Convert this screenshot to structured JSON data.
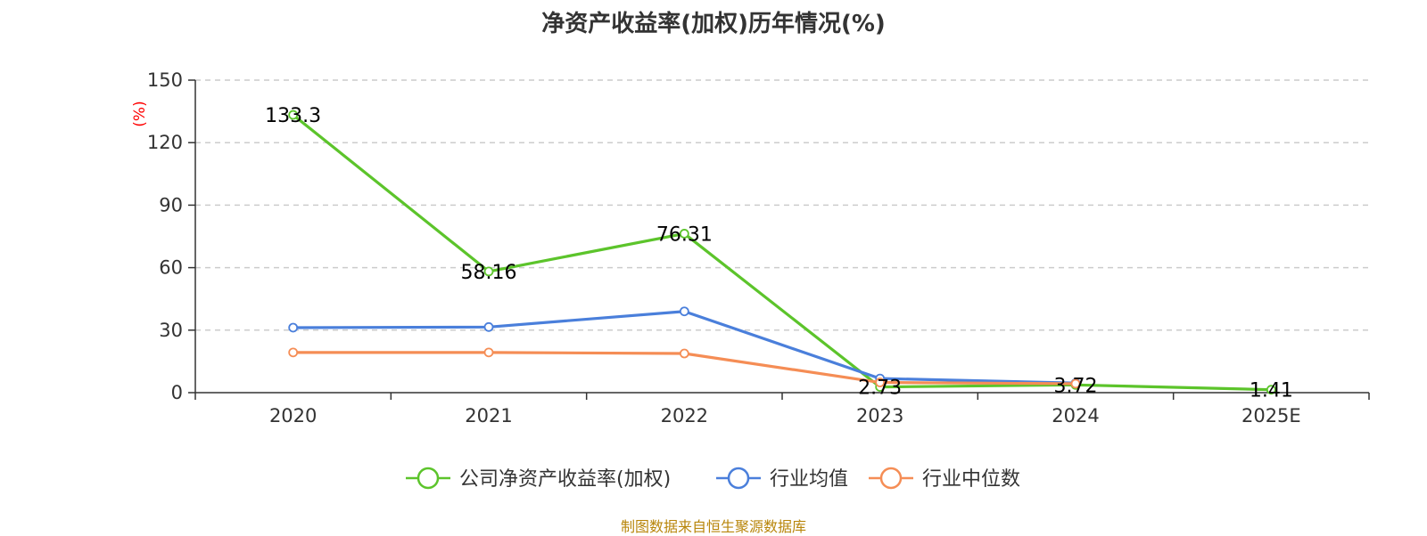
{
  "chart_data": {
    "type": "line",
    "title": "净资产收益率(加权)历年情况(%)",
    "ylabel": "(%)",
    "xlabel": "",
    "categories": [
      "2020",
      "2021",
      "2022",
      "2023",
      "2024",
      "2025E"
    ],
    "ylim": [
      0,
      150
    ],
    "yticks": [
      0,
      30,
      60,
      90,
      120,
      150
    ],
    "grid": true,
    "legend_position": "bottom",
    "series": [
      {
        "name": "公司净资产收益率(加权)",
        "color": "#5cc42b",
        "values": [
          133.3,
          58.16,
          76.31,
          2.73,
          3.72,
          1.41
        ],
        "labels": [
          "133.3",
          "58.16",
          "76.31",
          "2.73",
          "3.72",
          "1.41"
        ]
      },
      {
        "name": "行业均值",
        "color": "#4a7fdb",
        "values": [
          31.2,
          31.5,
          39.0,
          6.8,
          4.6,
          null
        ]
      },
      {
        "name": "行业中位数",
        "color": "#f58d55",
        "values": [
          19.3,
          19.3,
          18.8,
          4.9,
          4.3,
          null
        ]
      }
    ],
    "y_label_color": "#ff0000"
  },
  "footer": {
    "source": "制图数据来自恒生聚源数据库"
  }
}
